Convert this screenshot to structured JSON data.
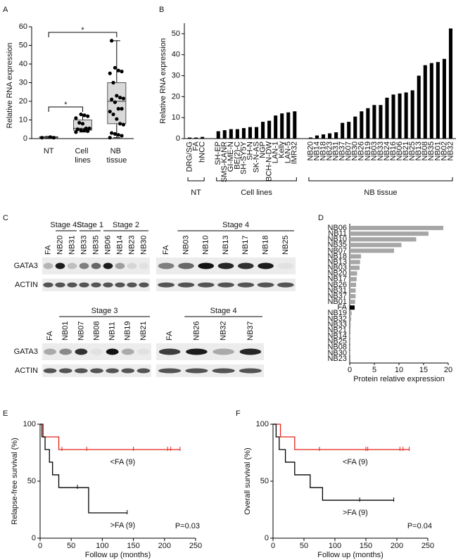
{
  "chart_data": [
    {
      "label": "A",
      "type": "box",
      "y_label": "Relative RNA expression",
      "categories": [
        "NT",
        "Cell lines",
        "NB tissue"
      ],
      "boxes": [
        {
          "min": 0.3,
          "q1": 0.5,
          "median": 0.8,
          "q3": 1.0,
          "max": 1.2
        },
        {
          "min": 3.5,
          "q1": 4.5,
          "median": 5.5,
          "q3": 10,
          "max": 13
        },
        {
          "min": 0.5,
          "q1": 8,
          "median": 20,
          "q3": 30,
          "max": 52.5
        }
      ],
      "points": [
        [
          0.5,
          0.5,
          0.8
        ],
        [
          3.5,
          4,
          4.5,
          4.5,
          5,
          5.5,
          5.5,
          8,
          8.5,
          11,
          12,
          12.5,
          13
        ],
        [
          0.5,
          1.5,
          2,
          2.5,
          3,
          7.5,
          8,
          10.5,
          13,
          14.5,
          16,
          16,
          19.5,
          21,
          21.5,
          22,
          23,
          30,
          35,
          36,
          36.5,
          38,
          52.5
        ]
      ],
      "color": "#d9d9d9",
      "ylim": [
        0,
        60
      ],
      "yticks": [
        0,
        10,
        20,
        30,
        40,
        50,
        60
      ],
      "annotations": [
        "*",
        "*"
      ]
    },
    {
      "label": "B",
      "type": "grouped_bar",
      "y_label": "Relative RNA expression",
      "color": "#000000",
      "ylim": [
        0,
        55
      ],
      "yticks": [
        0,
        10,
        20,
        30,
        40,
        50
      ],
      "groups": [
        {
          "name": "NT",
          "categories": [
            "DRG/SG",
            "FA",
            "hNCC"
          ],
          "values": [
            0.5,
            0.5,
            0.8
          ]
        },
        {
          "name": "Cell lines",
          "categories": [
            "SH-EP",
            "SMS-KANR",
            "GI-ME-N",
            "BE(2)-C",
            "SH-SY5Y",
            "SH-N",
            "SK-N-AS",
            "NGP",
            "BCH-N-DW",
            "LAN-1",
            "Kelly",
            "LAN-5",
            "IMR32"
          ],
          "values": [
            3.5,
            4,
            4.5,
            4.5,
            5,
            5.5,
            5.5,
            8,
            8.5,
            11,
            12,
            12.5,
            13
          ]
        },
        {
          "name": "NB tissue",
          "categories": [
            "NB20",
            "NB14",
            "NB18",
            "NB23",
            "NB31",
            "NB37",
            "NB07",
            "NB30",
            "NB26",
            "NB19",
            "NB03",
            "NB33",
            "NB24",
            "NB16",
            "NB06",
            "NB21",
            "NB25",
            "NB13",
            "NB08",
            "NB35",
            "NB01",
            "NB02",
            "NB32"
          ],
          "values": [
            0.5,
            1.5,
            2,
            2.5,
            3,
            7.5,
            8,
            10.5,
            13,
            14.5,
            16,
            16,
            19.5,
            21,
            21.5,
            22,
            23,
            30,
            35,
            36,
            36.5,
            38,
            52.5
          ]
        }
      ]
    },
    {
      "label": "D",
      "type": "hbar",
      "x_label": "Protein relative expression",
      "categories": [
        "NB06",
        "NB11",
        "NB10",
        "NB35",
        "NB07",
        "NB18",
        "NB13",
        "NB03",
        "NB20",
        "NB17",
        "NB26",
        "NB31",
        "NB37",
        "NB01",
        "FA",
        "NB19",
        "NB32",
        "NB33",
        "NB21",
        "NB14",
        "NB25",
        "NB08",
        "NB30",
        "NB23"
      ],
      "values": [
        19,
        16,
        13.5,
        10.5,
        9,
        2.3,
        2.1,
        2,
        1.5,
        1.4,
        1.3,
        1.2,
        1.2,
        1.1,
        1,
        0.4,
        0.3,
        0.2,
        0.15,
        0.1,
        0.1,
        0.05,
        0.05,
        0.02
      ],
      "colors": [
        "#a6a6a6",
        "#a6a6a6",
        "#a6a6a6",
        "#a6a6a6",
        "#a6a6a6",
        "#a6a6a6",
        "#a6a6a6",
        "#a6a6a6",
        "#a6a6a6",
        "#a6a6a6",
        "#a6a6a6",
        "#a6a6a6",
        "#a6a6a6",
        "#a6a6a6",
        "#000000",
        "#a6a6a6",
        "#a6a6a6",
        "#a6a6a6",
        "#a6a6a6",
        "#a6a6a6",
        "#a6a6a6",
        "#a6a6a6",
        "#a6a6a6",
        "#a6a6a6"
      ],
      "xlim": [
        0,
        20
      ],
      "xticks": [
        0,
        5,
        10,
        15,
        20
      ]
    },
    {
      "label": "E",
      "type": "survival",
      "y_label": "Relapse-free survival (%)",
      "x_label": "Follow up (months)",
      "annotation": "P=0.03",
      "xlim": [
        0,
        250
      ],
      "xticks": [
        0,
        50,
        100,
        150,
        200,
        250
      ],
      "ylim": [
        0,
        100
      ],
      "yticks": [
        0,
        50,
        100
      ],
      "series": [
        {
          "name": "<FA (9)",
          "color": "#e3231b",
          "x": [
            0,
            5,
            30,
            225
          ],
          "values": [
            100,
            88.9,
            77.8,
            77.8
          ],
          "censored_x": [
            35,
            75,
            150,
            205,
            210,
            225
          ],
          "censored_values": [
            77.8,
            77.8,
            77.8,
            77.8,
            77.8,
            77.8
          ]
        },
        {
          "name": ">FA (9)",
          "color": "#000000",
          "x": [
            0,
            3,
            8,
            15,
            20,
            30,
            78,
            140
          ],
          "values": [
            100,
            88.9,
            77.8,
            66.7,
            55.6,
            44.4,
            22.2,
            22.2
          ],
          "censored_x": [
            60,
            140
          ],
          "censored_values": [
            44.4,
            22.2
          ]
        }
      ]
    },
    {
      "label": "F",
      "type": "survival",
      "y_label": "Overall survival (%)",
      "x_label": "Follow up (months)",
      "annotation": "P=0.04",
      "xlim": [
        0,
        250
      ],
      "xticks": [
        0,
        50,
        100,
        150,
        200,
        250
      ],
      "ylim": [
        0,
        100
      ],
      "yticks": [
        0,
        50,
        100
      ],
      "series": [
        {
          "name": "<FA (9)",
          "color": "#e3231b",
          "x": [
            0,
            12,
            35,
            220
          ],
          "values": [
            100,
            88.9,
            77.8,
            77.8
          ],
          "censored_x": [
            75,
            150,
            153,
            205,
            210,
            220
          ],
          "censored_values": [
            77.8,
            77.8,
            77.8,
            77.8,
            77.8,
            77.8
          ]
        },
        {
          "name": ">FA (9)",
          "color": "#000000",
          "x": [
            0,
            5,
            10,
            20,
            35,
            60,
            80,
            195
          ],
          "values": [
            100,
            88.9,
            77.8,
            66.7,
            55.6,
            44.4,
            33.3,
            33.3
          ],
          "censored_x": [
            140,
            195
          ],
          "censored_values": [
            33.3,
            33.3
          ]
        }
      ]
    }
  ],
  "blot": {
    "label": "C",
    "row_labels": [
      "GATA3",
      "ACTIN"
    ],
    "blocks": [
      {
        "control": "FA",
        "groups": [
          {
            "name": "Stage 4S",
            "lanes": [
              "NB20",
              "NB31"
            ]
          },
          {
            "name": "Stage 1",
            "lanes": [
              "NB33",
              "NB35"
            ]
          },
          {
            "name": "Stage 2",
            "lanes": [
              "NB06",
              "NB14",
              "NB23",
              "NB30"
            ]
          }
        ]
      },
      {
        "control": "FA",
        "groups": [
          {
            "name": "Stage 4",
            "lanes": [
              "NB03",
              "NB10",
              "NB13",
              "NB17",
              "NB18",
              "NB25"
            ]
          }
        ]
      },
      {
        "control": "FA",
        "groups": [
          {
            "name": "Stage 3",
            "lanes": [
              "NB01",
              "NB07",
              "NB08",
              "NB11",
              "NB19",
              "NB21"
            ]
          }
        ]
      },
      {
        "control": "FA",
        "groups": [
          {
            "name": "Stage 4",
            "lanes": [
              "NB26",
              "NB32",
              "NB37"
            ]
          }
        ]
      }
    ]
  }
}
